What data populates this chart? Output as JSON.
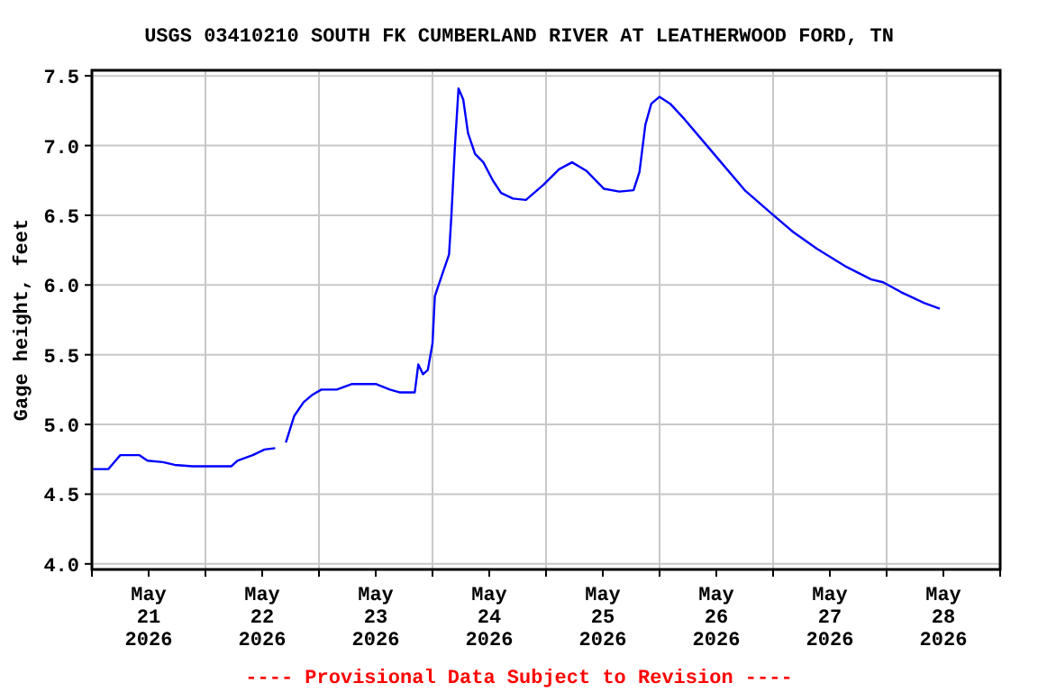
{
  "chart_data": {
    "type": "line",
    "title": "USGS 03410210 SOUTH FK CUMBERLAND RIVER AT LEATHERWOOD FORD, TN",
    "ylabel": "Gage height, feet",
    "annotations": [
      "---- Provisional Data Subject to Revision ----"
    ],
    "x": [
      "2026-05-21T00:00",
      "2026-05-21T03:30",
      "2026-05-21T06:00",
      "2026-05-21T10:00",
      "2026-05-21T11:45",
      "2026-05-21T15:00",
      "2026-05-21T17:30",
      "2026-05-21T21:15",
      "2026-05-22T05:30",
      "2026-05-22T06:45",
      "2026-05-22T10:00",
      "2026-05-22T12:30",
      "2026-05-22T14:45",
      "2026-05-22T15:45",
      "2026-05-22T17:00",
      "2026-05-22T18:45",
      "2026-05-22T20:45",
      "2026-05-22T22:30",
      "2026-05-23T00:30",
      "2026-05-23T03:45",
      "2026-05-23T07:00",
      "2026-05-23T12:00",
      "2026-05-23T15:00",
      "2026-05-23T17:00",
      "2026-05-23T20:15",
      "2026-05-23T21:00",
      "2026-05-23T22:00",
      "2026-05-23T23:00",
      "2026-05-24T00:00",
      "2026-05-24T00:30",
      "2026-05-24T02:00",
      "2026-05-24T03:30",
      "2026-05-24T04:00",
      "2026-05-24T04:45",
      "2026-05-24T05:30",
      "2026-05-24T06:30",
      "2026-05-24T07:30",
      "2026-05-24T09:00",
      "2026-05-24T10:45",
      "2026-05-24T12:45",
      "2026-05-24T14:30",
      "2026-05-24T17:00",
      "2026-05-24T19:45",
      "2026-05-24T23:30",
      "2026-05-25T02:45",
      "2026-05-25T05:30",
      "2026-05-25T08:30",
      "2026-05-25T12:15",
      "2026-05-25T15:30",
      "2026-05-25T18:30",
      "2026-05-25T19:45",
      "2026-05-25T21:00",
      "2026-05-25T22:15",
      "2026-05-26T00:00",
      "2026-05-26T02:15",
      "2026-05-26T05:15",
      "2026-05-26T09:00",
      "2026-05-26T13:00",
      "2026-05-26T18:00",
      "2026-05-26T23:45",
      "2026-05-27T04:15",
      "2026-05-27T09:15",
      "2026-05-27T15:30",
      "2026-05-27T20:45",
      "2026-05-27T23:15",
      "2026-05-28T03:00",
      "2026-05-28T08:00",
      "2026-05-28T11:15"
    ],
    "series": [
      {
        "color": "#0000ff",
        "values": [
          4.68,
          4.68,
          4.78,
          4.78,
          4.74,
          4.73,
          4.71,
          4.7,
          4.7,
          4.74,
          4.78,
          4.82,
          4.83,
          null,
          4.87,
          5.06,
          5.16,
          5.21,
          5.25,
          5.25,
          5.29,
          5.29,
          5.25,
          5.23,
          5.23,
          5.43,
          5.36,
          5.39,
          5.58,
          5.92,
          6.07,
          6.22,
          6.5,
          7.0,
          7.41,
          7.33,
          7.09,
          6.94,
          6.88,
          6.75,
          6.66,
          6.62,
          6.61,
          6.72,
          6.83,
          6.88,
          6.82,
          6.69,
          6.67,
          6.68,
          6.81,
          7.15,
          7.3,
          7.35,
          7.3,
          7.19,
          7.04,
          6.88,
          6.68,
          6.51,
          6.38,
          6.26,
          6.13,
          6.04,
          6.02,
          5.95,
          5.87,
          5.83
        ]
      }
    ],
    "xlim": [
      "2026-05-21T00:00",
      "2026-05-29T00:00"
    ],
    "xticks": [
      {
        "value": "2026-05-21T00:00",
        "label": null
      },
      {
        "value": "2026-05-21T12:00",
        "label": "May\n21\n2026"
      },
      {
        "value": "2026-05-22T00:00",
        "label": null
      },
      {
        "value": "2026-05-22T12:00",
        "label": "May\n22\n2026"
      },
      {
        "value": "2026-05-23T00:00",
        "label": null
      },
      {
        "value": "2026-05-23T12:00",
        "label": "May\n23\n2026"
      },
      {
        "value": "2026-05-24T00:00",
        "label": null
      },
      {
        "value": "2026-05-24T12:00",
        "label": "May\n24\n2026"
      },
      {
        "value": "2026-05-25T00:00",
        "label": null
      },
      {
        "value": "2026-05-25T12:00",
        "label": "May\n25\n2026"
      },
      {
        "value": "2026-05-26T00:00",
        "label": null
      },
      {
        "value": "2026-05-26T12:00",
        "label": "May\n26\n2026"
      },
      {
        "value": "2026-05-27T00:00",
        "label": null
      },
      {
        "value": "2026-05-27T12:00",
        "label": "May\n27\n2026"
      },
      {
        "value": "2026-05-28T00:00",
        "label": null
      },
      {
        "value": "2026-05-28T12:00",
        "label": "May\n28\n2026"
      },
      {
        "value": "2026-05-29T00:00",
        "label": null
      }
    ],
    "ylim": [
      3.96,
      7.54
    ],
    "yticks": [
      {
        "value": 4,
        "label": "4.0"
      },
      {
        "value": 4.5,
        "label": "4.5"
      },
      {
        "value": 5,
        "label": "5.0"
      },
      {
        "value": 5.5,
        "label": "5.5"
      },
      {
        "value": 6,
        "label": "6.0"
      },
      {
        "value": 6.5,
        "label": "6.5"
      },
      {
        "value": 7,
        "label": "7.0"
      },
      {
        "value": 7.5,
        "label": "7.5"
      }
    ],
    "grid": true,
    "marker": "none",
    "line_style": "solid"
  }
}
